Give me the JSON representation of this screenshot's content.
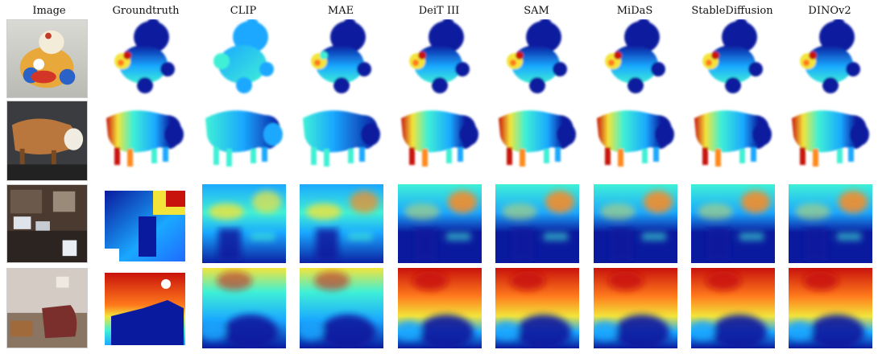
{
  "columns": [
    {
      "key": "image",
      "label": "Image"
    },
    {
      "key": "groundtruth",
      "label": "Groundtruth"
    },
    {
      "key": "clip",
      "label": "CLIP"
    },
    {
      "key": "mae",
      "label": "MAE"
    },
    {
      "key": "deit",
      "label": "DeiT III"
    },
    {
      "key": "sam",
      "label": "SAM"
    },
    {
      "key": "midas",
      "label": "MiDaS"
    },
    {
      "key": "stablediffusion",
      "label": "StableDiffusion"
    },
    {
      "key": "dinov2",
      "label": "DINOv2"
    }
  ],
  "rows": [
    {
      "key": "toy-chicken"
    },
    {
      "key": "toy-cow"
    },
    {
      "key": "office"
    },
    {
      "key": "living-room"
    }
  ],
  "colors": {
    "near": "#0a1a9e",
    "mid": "#1aa8ff",
    "cyan": "#3ff0d6",
    "yellow": "#f3e43a",
    "far": "#c8120c"
  }
}
